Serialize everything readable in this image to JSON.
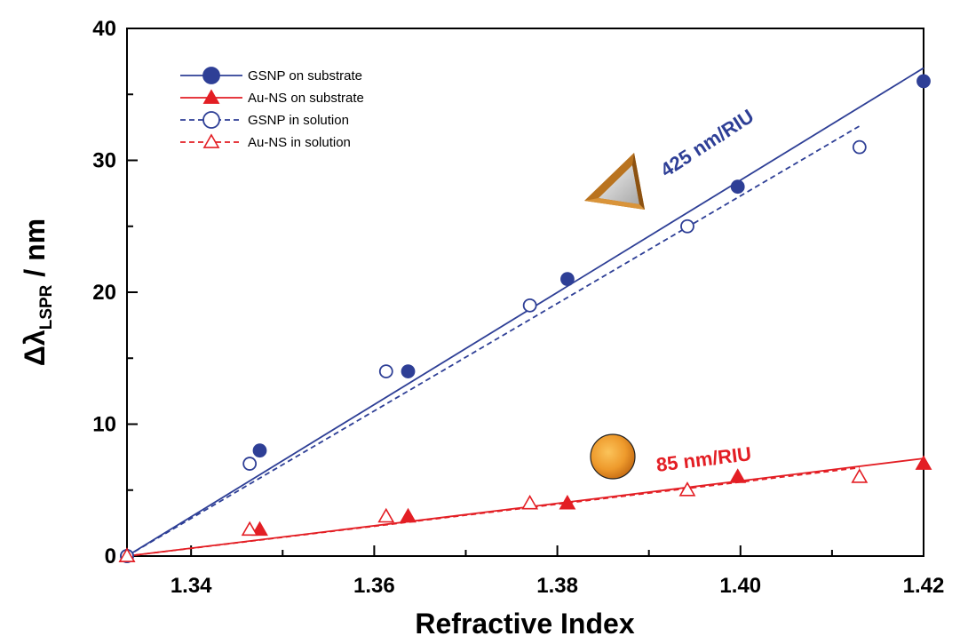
{
  "chart_data": {
    "type": "scatter",
    "title": "",
    "xlabel": "Refractive Index",
    "ylabel_main": "Δλ",
    "ylabel_sub": "LSPR",
    "ylabel_unit": " / nm",
    "xlim": [
      1.333,
      1.42
    ],
    "ylim": [
      0,
      40
    ],
    "xticks": [
      1.34,
      1.36,
      1.38,
      1.4,
      1.42
    ],
    "xtick_labels": [
      "1.34",
      "1.36",
      "1.38",
      "1.40",
      "1.42"
    ],
    "yticks": [
      0,
      10,
      20,
      30,
      40
    ],
    "ytick_labels": [
      "0",
      "10",
      "20",
      "30",
      "40"
    ],
    "grid": false,
    "legend_position": "top-left",
    "series": [
      {
        "name": "GSNP on substrate",
        "color": "#2e3f96",
        "marker": "circle",
        "filled": true,
        "line": "solid",
        "x": [
          1.333,
          1.3475,
          1.3637,
          1.3811,
          1.3997,
          1.42
        ],
        "y": [
          0,
          8,
          14,
          21,
          28,
          36
        ],
        "fit": {
          "x": [
            1.333,
            1.42
          ],
          "y": [
            0,
            37
          ]
        }
      },
      {
        "name": "Au-NS on substrate",
        "color": "#e31e24",
        "marker": "triangle",
        "filled": true,
        "line": "solid",
        "x": [
          1.333,
          1.3475,
          1.3637,
          1.3811,
          1.3997,
          1.42
        ],
        "y": [
          0,
          2,
          3,
          4,
          6,
          7
        ],
        "fit": {
          "x": [
            1.333,
            1.42
          ],
          "y": [
            0,
            7.4
          ]
        }
      },
      {
        "name": "GSNP in solution",
        "color": "#2e3f96",
        "marker": "circle",
        "filled": false,
        "line": "dashed",
        "x": [
          1.333,
          1.3464,
          1.3613,
          1.377,
          1.3942,
          1.413
        ],
        "y": [
          0,
          7,
          14,
          19,
          25,
          31
        ],
        "fit": {
          "x": [
            1.333,
            1.413
          ],
          "y": [
            0,
            32.6
          ]
        }
      },
      {
        "name": "Au-NS  in solution",
        "color": "#e31e24",
        "marker": "triangle",
        "filled": false,
        "line": "dashed",
        "x": [
          1.333,
          1.3464,
          1.3613,
          1.377,
          1.3942,
          1.413
        ],
        "y": [
          0,
          2,
          3,
          4,
          5,
          6
        ],
        "fit": {
          "x": [
            1.333,
            1.413
          ],
          "y": [
            0,
            6.7
          ]
        }
      }
    ],
    "annotations": [
      {
        "text": "425 nm/RIU",
        "color": "#2e3f96"
      },
      {
        "text": "85 nm/RIU",
        "color": "#e31e24"
      }
    ],
    "decorations": [
      {
        "icon": "nanoprism-triangle-icon",
        "color": "#c27a2c"
      },
      {
        "icon": "nanosphere-icon",
        "color": "#e9962c"
      }
    ]
  }
}
